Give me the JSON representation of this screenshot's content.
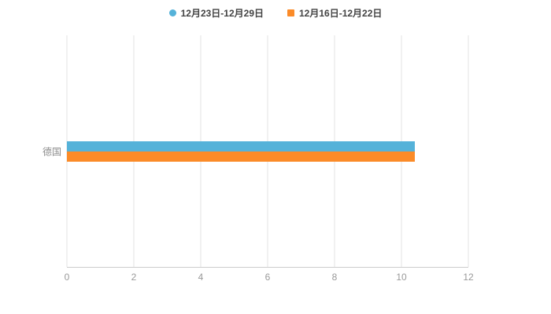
{
  "chart_data": {
    "type": "bar",
    "orientation": "horizontal",
    "title": "",
    "xlabel": "",
    "ylabel": "",
    "categories": [
      "德国"
    ],
    "series": [
      {
        "name": "12月23日-12月29日",
        "color": "#55b2d9",
        "marker": "circle",
        "values": [
          10.4
        ]
      },
      {
        "name": "12月16日-12月22日",
        "color": "#fb8b28",
        "marker": "square",
        "values": [
          10.4
        ]
      }
    ],
    "xlim": [
      0,
      12
    ],
    "xticks": [
      0,
      2,
      4,
      6,
      8,
      10,
      12
    ],
    "grid": true,
    "legend_position": "top",
    "bar_thickness_px": 13,
    "axis_color": "#cccccc",
    "gridline_color": "#e3e3e3",
    "tick_label_color": "#999999"
  }
}
